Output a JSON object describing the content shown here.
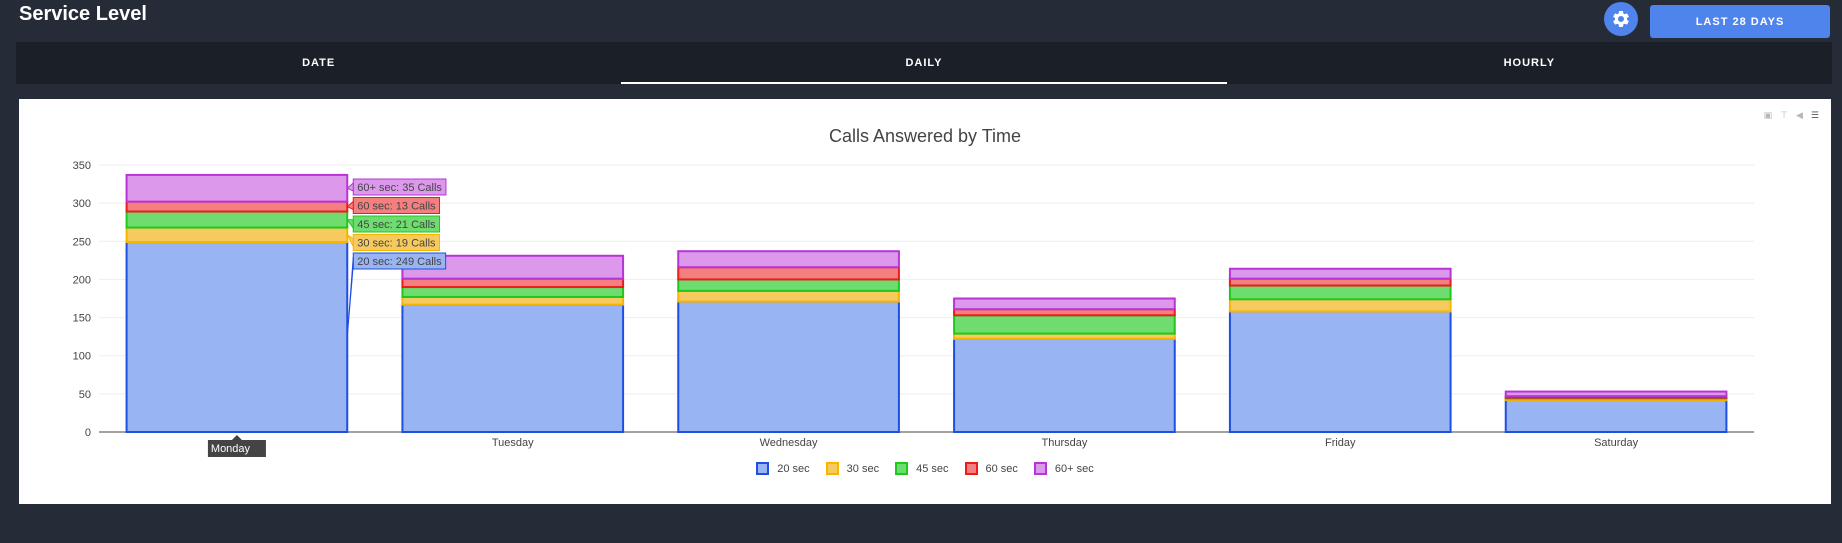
{
  "header": {
    "title": "Service Level",
    "settings_icon": "gear-icon",
    "range_button_label": "LAST 28 DAYS"
  },
  "tabs": [
    {
      "label": "DATE",
      "active": false
    },
    {
      "label": "DAILY",
      "active": true
    },
    {
      "label": "HOURLY",
      "active": false
    }
  ],
  "modebar_icons": [
    "camera-icon",
    "zoom-icon",
    "pan-icon",
    "menu-icon"
  ],
  "colors": {
    "accent": "#4f84ec",
    "page_background": "#262b38",
    "tab_background": "#1b1f27"
  },
  "chart_data": {
    "type": "bar",
    "stacked": true,
    "title": "Calls Answered by Time",
    "xlabel": "",
    "ylabel": "",
    "categories": [
      "Monday",
      "Tuesday",
      "Wednesday",
      "Thursday",
      "Friday",
      "Saturday"
    ],
    "ylim": [
      0,
      350
    ],
    "yticks": [
      0,
      50,
      100,
      150,
      200,
      250,
      300,
      350
    ],
    "grid": true,
    "legend_position": "bottom",
    "series": [
      {
        "name": "20 sec",
        "color": "#1f4fe0",
        "fill": "#99b4f2",
        "values": [
          249,
          167,
          171,
          122,
          158,
          42
        ]
      },
      {
        "name": "30 sec",
        "color": "#f7b500",
        "fill": "#f7ca60",
        "values": [
          19,
          10,
          14,
          7,
          16,
          2
        ]
      },
      {
        "name": "45 sec",
        "color": "#1ec91e",
        "fill": "#6fdc6f",
        "values": [
          21,
          13,
          15,
          24,
          18,
          1
        ]
      },
      {
        "name": "60 sec",
        "color": "#ee1b1b",
        "fill": "#f37f7f",
        "values": [
          13,
          11,
          16,
          8,
          9,
          2
        ]
      },
      {
        "name": "60+ sec",
        "color": "#b834d6",
        "fill": "#dc99ec",
        "values": [
          35,
          30,
          21,
          14,
          13,
          6
        ]
      }
    ],
    "hover": {
      "category": "Monday",
      "labels": [
        {
          "series": "60+ sec",
          "text": "60+ sec: 35 Calls"
        },
        {
          "series": "60 sec",
          "text": "60 sec: 13 Calls"
        },
        {
          "series": "45 sec",
          "text": "45 sec: 21 Calls"
        },
        {
          "series": "30 sec",
          "text": "30 sec: 19 Calls"
        },
        {
          "series": "20 sec",
          "text": "20 sec: 249 Calls"
        }
      ]
    }
  }
}
